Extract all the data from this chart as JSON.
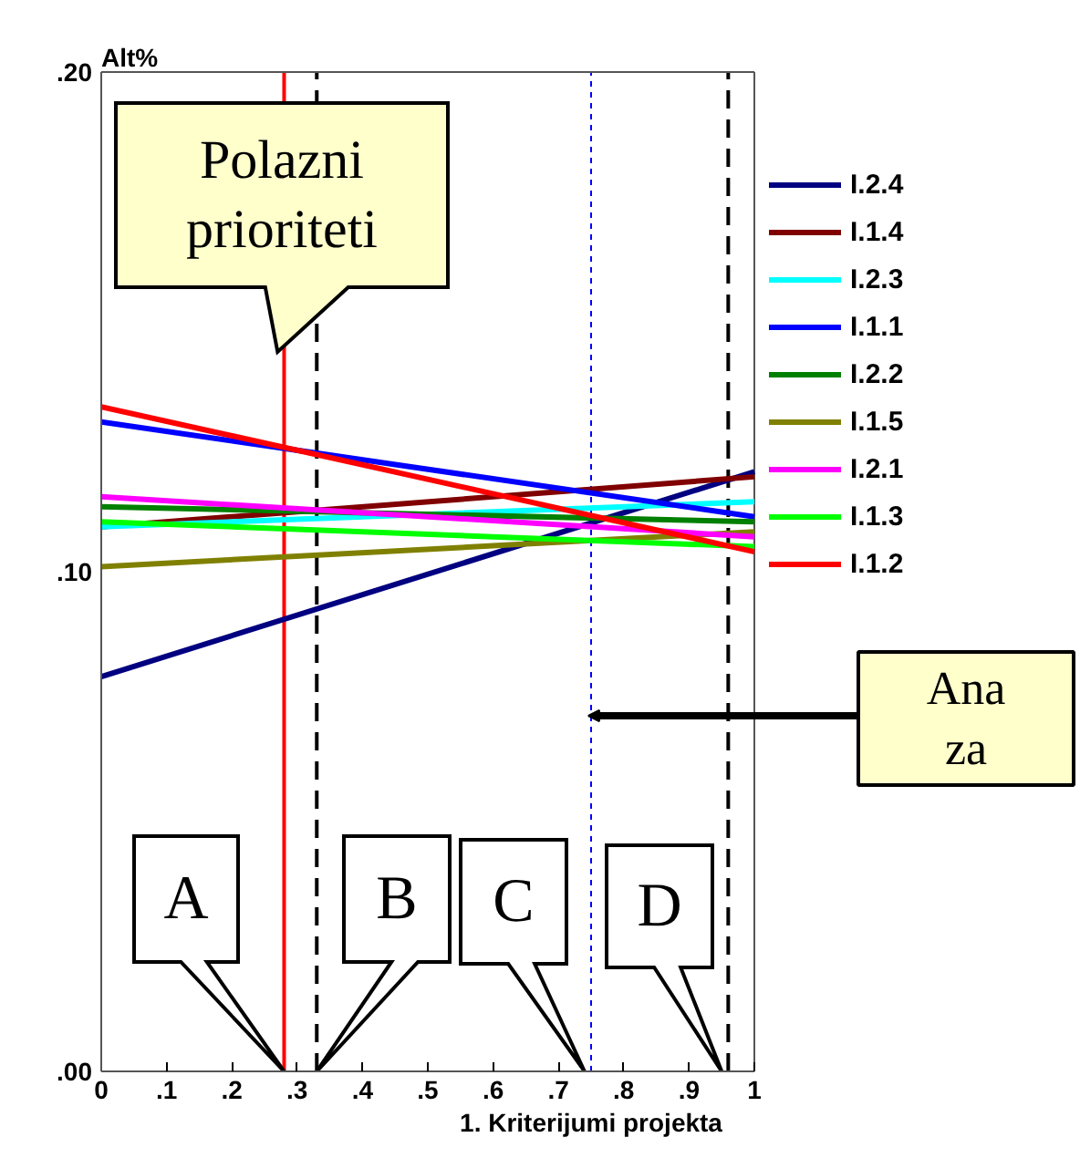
{
  "chart_data": {
    "type": "line",
    "xlabel": "1. Kriterijumi projekta",
    "ylabel": "Alt%",
    "x": [
      0,
      1
    ],
    "series": [
      {
        "name": "I.2.4",
        "color": "#000080",
        "values": [
          0.079,
          0.12
        ]
      },
      {
        "name": "I.1.4",
        "color": "#800000",
        "values": [
          0.109,
          0.119
        ]
      },
      {
        "name": "I.2.3",
        "color": "#00ffff",
        "values": [
          0.109,
          0.114
        ]
      },
      {
        "name": "I.1.1",
        "color": "#0000ff",
        "values": [
          0.13,
          0.111
        ]
      },
      {
        "name": "I.2.2",
        "color": "#008000",
        "values": [
          0.113,
          0.11
        ]
      },
      {
        "name": "I.1.5",
        "color": "#808000",
        "values": [
          0.101,
          0.108
        ]
      },
      {
        "name": "I.2.1",
        "color": "#ff00ff",
        "values": [
          0.115,
          0.107
        ]
      },
      {
        "name": "I.1.3",
        "color": "#00ff00",
        "values": [
          0.11,
          0.105
        ]
      },
      {
        "name": "I.1.2",
        "color": "#ff0000",
        "values": [
          0.133,
          0.104
        ]
      }
    ],
    "xlim": [
      0,
      1
    ],
    "ylim": [
      0,
      0.2
    ],
    "xticks": [
      0,
      {
        "value": 0.1,
        "label": ".1"
      },
      {
        "value": 0.2,
        "label": ".2"
      },
      {
        "value": 0.3,
        "label": ".3"
      },
      {
        "value": 0.4,
        "label": ".4"
      },
      {
        "value": 0.5,
        "label": ".5"
      },
      {
        "value": 0.6,
        "label": ".6"
      },
      {
        "value": 0.7,
        "label": ".7"
      },
      {
        "value": 0.8,
        "label": ".8"
      },
      {
        "value": 0.9,
        "label": ".9"
      },
      1
    ],
    "yticks": [
      {
        "value": 0,
        "label": ".00"
      },
      {
        "value": 0.1,
        "label": ".10"
      },
      {
        "value": 0.2,
        "label": ".20"
      }
    ],
    "ref_lines": [
      {
        "axis": "x",
        "value": 0.28,
        "color": "#ff0000",
        "line_style": "solid"
      },
      {
        "axis": "x",
        "value": 0.33,
        "color": "#000000",
        "line_style": "dashed"
      },
      {
        "axis": "x",
        "value": 0.75,
        "color": "#0000ff",
        "line_style": "dotted"
      },
      {
        "axis": "x",
        "value": 0.96,
        "color": "#000000",
        "line_style": "dashed"
      }
    ],
    "annotations": [
      {
        "text": "Polazni\nprioriteti",
        "x": 0.27,
        "y": 0.144
      },
      {
        "text": "A",
        "x": 0.28,
        "y": 0
      },
      {
        "text": "B",
        "x": 0.33,
        "y": 0
      },
      {
        "text": "C",
        "x": 0.74,
        "y": 0
      },
      {
        "text": "D",
        "x": 0.95,
        "y": 0
      },
      "Ana\nza"
    ],
    "legend": "right",
    "grid": false,
    "marker": "none",
    "line_style": "solid"
  }
}
